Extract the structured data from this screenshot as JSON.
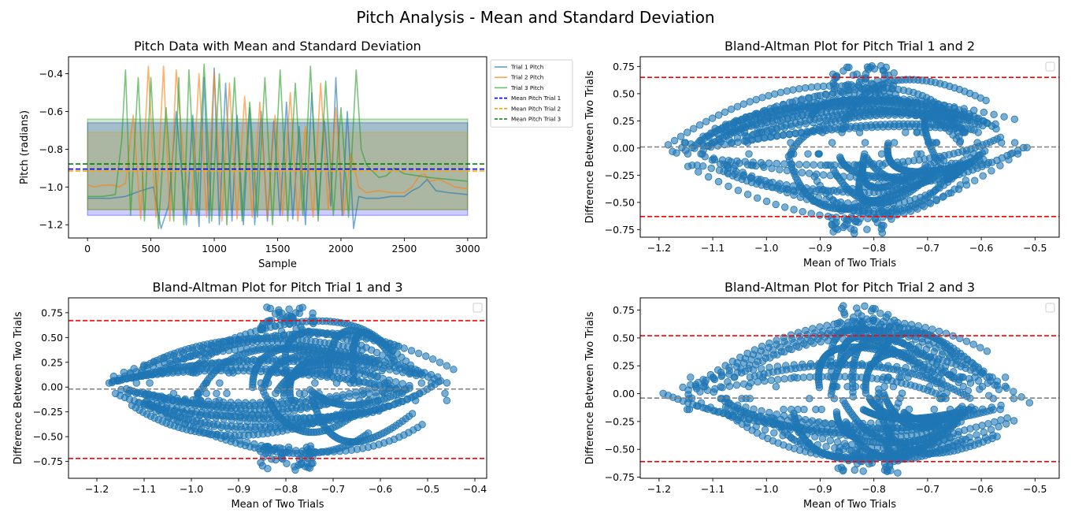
{
  "figure": {
    "suptitle": "Pitch Analysis - Mean and Standard Deviation"
  },
  "colors": {
    "trial1": "#1f77b4",
    "trial2": "#ff7f0e",
    "trial3": "#2ca02c",
    "mean1": "#0000ff",
    "mean2": "#ffa500",
    "mean3": "#008000",
    "limits": "#ff0000",
    "meanDiff": "#808080",
    "points": "#1f77b4"
  },
  "chart_data": [
    {
      "type": "line",
      "title": "Pitch Data with Mean and Standard Deviation",
      "xlabel": "Sample",
      "ylabel": "Pitch (radians)",
      "xlim": [
        -150,
        3150
      ],
      "ylim": [
        -1.27,
        -0.31
      ],
      "xticks": [
        0,
        500,
        1000,
        1500,
        2000,
        2500,
        3000
      ],
      "yticks": [
        -1.2,
        -1.0,
        -0.8,
        -0.6,
        -0.4
      ],
      "legend_placement": "outside-right",
      "series": [
        {
          "name": "Trial 1 Pitch",
          "kind": "line",
          "color": "#1f77b4",
          "x": [
            0,
            180,
            300,
            420,
            520,
            580,
            640,
            700,
            780,
            830,
            880,
            920,
            960,
            1000,
            1040,
            1090,
            1140,
            1180,
            1230,
            1280,
            1320,
            1370,
            1420,
            1470,
            1520,
            1570,
            1620,
            1670,
            1720,
            1770,
            1820,
            1870,
            1920,
            1960,
            2010,
            2050,
            2100,
            2140,
            2200,
            2300,
            2400,
            2500,
            2560,
            2620,
            2680,
            2750,
            2850,
            3000
          ],
          "values": [
            -1.06,
            -1.06,
            -1.05,
            -1.02,
            -1.0,
            -1.22,
            -1.1,
            -0.6,
            -1.2,
            -0.62,
            -1.21,
            -0.42,
            -1.19,
            -0.37,
            -1.2,
            -0.45,
            -1.18,
            -0.62,
            -1.2,
            -0.58,
            -1.2,
            -0.6,
            -1.18,
            -0.65,
            -1.15,
            -0.55,
            -1.17,
            -0.68,
            -1.2,
            -0.5,
            -1.15,
            -0.65,
            -1.1,
            -0.42,
            -1.15,
            -0.6,
            -1.22,
            -1.05,
            -1.06,
            -1.06,
            -1.05,
            -1.05,
            -1.02,
            -1.0,
            -0.96,
            -1.02,
            -1.03,
            -1.04
          ]
        },
        {
          "name": "Trial 2 Pitch",
          "kind": "line",
          "color": "#ff7f0e",
          "x": [
            0,
            60,
            120,
            200,
            250,
            300,
            360,
            420,
            480,
            540,
            600,
            650,
            700,
            760,
            820,
            880,
            940,
            1000,
            1060,
            1120,
            1180,
            1240,
            1300,
            1360,
            1420,
            1480,
            1540,
            1600,
            1660,
            1720,
            1780,
            1840,
            1900,
            1960,
            2020,
            2080,
            2140,
            2200,
            2300,
            2400,
            2500,
            2560,
            2620,
            2660,
            2700,
            2780,
            2900,
            3000
          ],
          "values": [
            -0.99,
            -1.0,
            -0.99,
            -0.99,
            -1.0,
            -0.98,
            -0.62,
            -1.17,
            -0.36,
            -1.16,
            -0.36,
            -1.18,
            -0.38,
            -0.86,
            -1.15,
            -0.4,
            -1.16,
            -0.39,
            -1.18,
            -0.45,
            -1.17,
            -0.52,
            -1.16,
            -0.55,
            -1.16,
            -0.62,
            -1.15,
            -0.5,
            -1.18,
            -0.68,
            -1.16,
            -0.45,
            -1.12,
            -0.58,
            -1.15,
            -0.82,
            -1.0,
            -1.03,
            -1.02,
            -1.03,
            -1.03,
            -1.0,
            -0.94,
            -0.93,
            -0.97,
            -0.96,
            -1.0,
            -1.01
          ]
        },
        {
          "name": "Trial 3 Pitch",
          "kind": "line",
          "color": "#2ca02c",
          "x": [
            0,
            120,
            220,
            270,
            300,
            340,
            400,
            450,
            500,
            560,
            620,
            680,
            720,
            760,
            800,
            860,
            920,
            980,
            1040,
            1100,
            1160,
            1220,
            1280,
            1340,
            1400,
            1460,
            1520,
            1580,
            1640,
            1700,
            1760,
            1820,
            1880,
            1940,
            2000,
            2060,
            2120,
            2160,
            2200,
            2240,
            2300,
            2360,
            2420,
            2500,
            2600,
            2700,
            2850,
            3000
          ],
          "values": [
            -1.05,
            -1.05,
            -1.04,
            -0.75,
            -0.38,
            -1.15,
            -0.42,
            -1.18,
            -0.42,
            -1.22,
            -0.58,
            -1.18,
            -0.42,
            -1.2,
            -0.38,
            -1.15,
            -0.35,
            -1.18,
            -0.4,
            -1.2,
            -0.42,
            -1.18,
            -0.55,
            -1.16,
            -0.42,
            -1.2,
            -0.38,
            -1.18,
            -0.45,
            -1.15,
            -0.36,
            -1.18,
            -0.44,
            -1.15,
            -0.58,
            -1.16,
            -0.38,
            -0.8,
            -0.88,
            -0.91,
            -0.95,
            -0.94,
            -0.9,
            -0.93,
            -0.94,
            -0.95,
            -0.96,
            -0.97
          ]
        },
        {
          "name": "Mean Pitch Trial 1",
          "kind": "hline",
          "style": "dashed",
          "color": "#0000ff",
          "value": -0.905
        },
        {
          "name": "Mean Pitch Trial 2",
          "kind": "hline",
          "style": "dashed",
          "color": "#ffa500",
          "value": -0.915
        },
        {
          "name": "Mean Pitch Trial 3",
          "kind": "hline",
          "style": "dashed",
          "color": "#008000",
          "value": -0.878
        }
      ],
      "bands": [
        {
          "color": "#0000ff",
          "x_range": [
            0,
            3000
          ],
          "range": [
            -1.15,
            -0.66
          ]
        },
        {
          "color": "#ffa500",
          "x_range": [
            0,
            3000
          ],
          "range": [
            -1.12,
            -0.71
          ]
        },
        {
          "color": "#008000",
          "x_range": [
            0,
            3000
          ],
          "range": [
            -1.12,
            -0.64
          ]
        }
      ]
    },
    {
      "type": "scatter",
      "title": "Bland-Altman Plot for Pitch Trial 1 and 2",
      "xlabel": "Mean of Two Trials",
      "ylabel": "Difference Between Two Trials",
      "xlim": [
        -1.235,
        -0.455
      ],
      "ylim": [
        -0.82,
        0.84
      ],
      "xticks": [
        -1.2,
        -1.1,
        -1.0,
        -0.9,
        -0.8,
        -0.7,
        -0.6,
        -0.5
      ],
      "yticks": [
        -0.75,
        -0.5,
        -0.25,
        0.0,
        0.25,
        0.5,
        0.75
      ],
      "mean_diff": 0.01,
      "loa": [
        -0.63,
        0.65
      ],
      "cloud": {
        "left": [
          -1.2,
          -0.04
        ],
        "right": [
          -0.47,
          0.15
        ],
        "top": [
          -0.82,
          0.76
        ],
        "bottom": [
          -0.82,
          -0.79
        ]
      }
    },
    {
      "type": "scatter",
      "title": "Bland-Altman Plot for Pitch Trial 1 and 3",
      "xlabel": "Mean of Two Trials",
      "ylabel": "Difference Between Two Trials",
      "xlim": [
        -1.26,
        -0.375
      ],
      "ylim": [
        -0.92,
        0.9
      ],
      "xticks": [
        -1.2,
        -1.1,
        -1.0,
        -0.9,
        -0.8,
        -0.7,
        -0.6,
        -0.5,
        -0.4
      ],
      "yticks": [
        -0.75,
        -0.5,
        -0.25,
        0.0,
        0.25,
        0.5,
        0.75
      ],
      "mean_diff": -0.02,
      "loa": [
        -0.72,
        0.67
      ],
      "cloud": {
        "left": [
          -1.22,
          0.0
        ],
        "right": [
          -0.41,
          0.08
        ],
        "top": [
          -0.8,
          0.81
        ],
        "bottom": [
          -0.81,
          -0.84
        ]
      }
    },
    {
      "type": "scatter",
      "title": "Bland-Altman Plot for Pitch Trial 2 and 3",
      "xlabel": "Mean of Two Trials",
      "ylabel": "Difference Between Two Trials",
      "xlim": [
        -1.235,
        -0.455
      ],
      "ylim": [
        -0.76,
        0.86
      ],
      "xticks": [
        -1.2,
        -1.1,
        -1.0,
        -0.9,
        -0.8,
        -0.7,
        -0.6,
        -0.5
      ],
      "yticks": [
        -0.75,
        -0.5,
        -0.25,
        0.0,
        0.25,
        0.5,
        0.75
      ],
      "mean_diff": -0.04,
      "loa": [
        -0.61,
        0.52
      ],
      "cloud": {
        "left": [
          -1.2,
          0.0
        ],
        "right": [
          -0.46,
          -0.19
        ],
        "top": [
          -0.81,
          0.79
        ],
        "bottom": [
          -0.82,
          -0.72
        ]
      }
    }
  ]
}
